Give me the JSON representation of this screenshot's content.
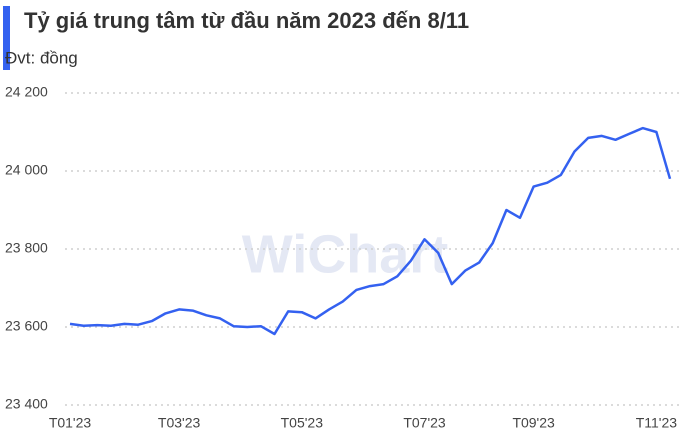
{
  "chart_data": {
    "type": "line",
    "title": "Tỷ giá trung tâm từ đầu năm 2023 đến 8/11",
    "subtitle": "Đvt: đồng",
    "watermark": "WiChart",
    "categories": [
      "T01'23",
      null,
      null,
      null,
      null,
      null,
      null,
      null,
      "T03'23",
      null,
      null,
      null,
      null,
      null,
      null,
      null,
      null,
      "T05'23",
      null,
      null,
      null,
      null,
      null,
      null,
      null,
      null,
      "T07'23",
      null,
      null,
      null,
      null,
      null,
      null,
      null,
      "T09'23",
      null,
      null,
      null,
      null,
      null,
      null,
      null,
      null,
      "T11'23",
      null
    ],
    "values": [
      23608,
      23603,
      23605,
      23603,
      23608,
      23606,
      23615,
      23635,
      23645,
      23642,
      23630,
      23622,
      23602,
      23600,
      23602,
      23582,
      23640,
      23638,
      23622,
      23645,
      23665,
      23695,
      23705,
      23710,
      23730,
      23770,
      23825,
      23790,
      23710,
      23745,
      23765,
      23815,
      23900,
      23880,
      23960,
      23970,
      23990,
      24050,
      24085,
      24090,
      24080,
      24095,
      24110,
      24100,
      23980
    ],
    "color": "#3461f0",
    "ylim": [
      23400,
      24200
    ],
    "yticks": [
      {
        "value": 23400,
        "label": "23 400"
      },
      {
        "value": 23600,
        "label": "23 600"
      },
      {
        "value": 23800,
        "label": "23 800"
      },
      {
        "value": 24000,
        "label": "24 000"
      },
      {
        "value": 24200,
        "label": "24 200"
      }
    ],
    "grid": true
  }
}
